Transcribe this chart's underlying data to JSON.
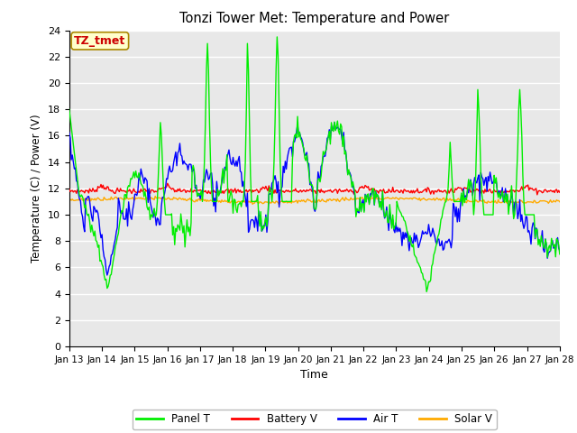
{
  "title": "Tonzi Tower Met: Temperature and Power",
  "xlabel": "Time",
  "ylabel": "Temperature (C) / Power (V)",
  "ylim": [
    0,
    24
  ],
  "yticks": [
    0,
    2,
    4,
    6,
    8,
    10,
    12,
    14,
    16,
    18,
    20,
    22,
    24
  ],
  "xtick_labels": [
    "Jan 13",
    "Jan 14",
    "Jan 15",
    "Jan 16",
    "Jan 17",
    "Jan 18",
    "Jan 19",
    "Jan 20",
    "Jan 21",
    "Jan 22",
    "Jan 23",
    "Jan 24",
    "Jan 25",
    "Jan 26",
    "Jan 27",
    "Jan 28"
  ],
  "annotation_text": "TZ_tmet",
  "annotation_color": "#cc0000",
  "annotation_bg": "#ffffcc",
  "annotation_edge": "#aa8800",
  "fig_bg_color": "#ffffff",
  "plot_bg_color": "#e8e8e8",
  "grid_color": "#ffffff",
  "colors": {
    "panel_t": "#00ee00",
    "battery_v": "#ff0000",
    "air_t": "#0000ff",
    "solar_v": "#ffaa00"
  },
  "legend_labels": [
    "Panel T",
    "Battery V",
    "Air T",
    "Solar V"
  ],
  "n_points": 480
}
